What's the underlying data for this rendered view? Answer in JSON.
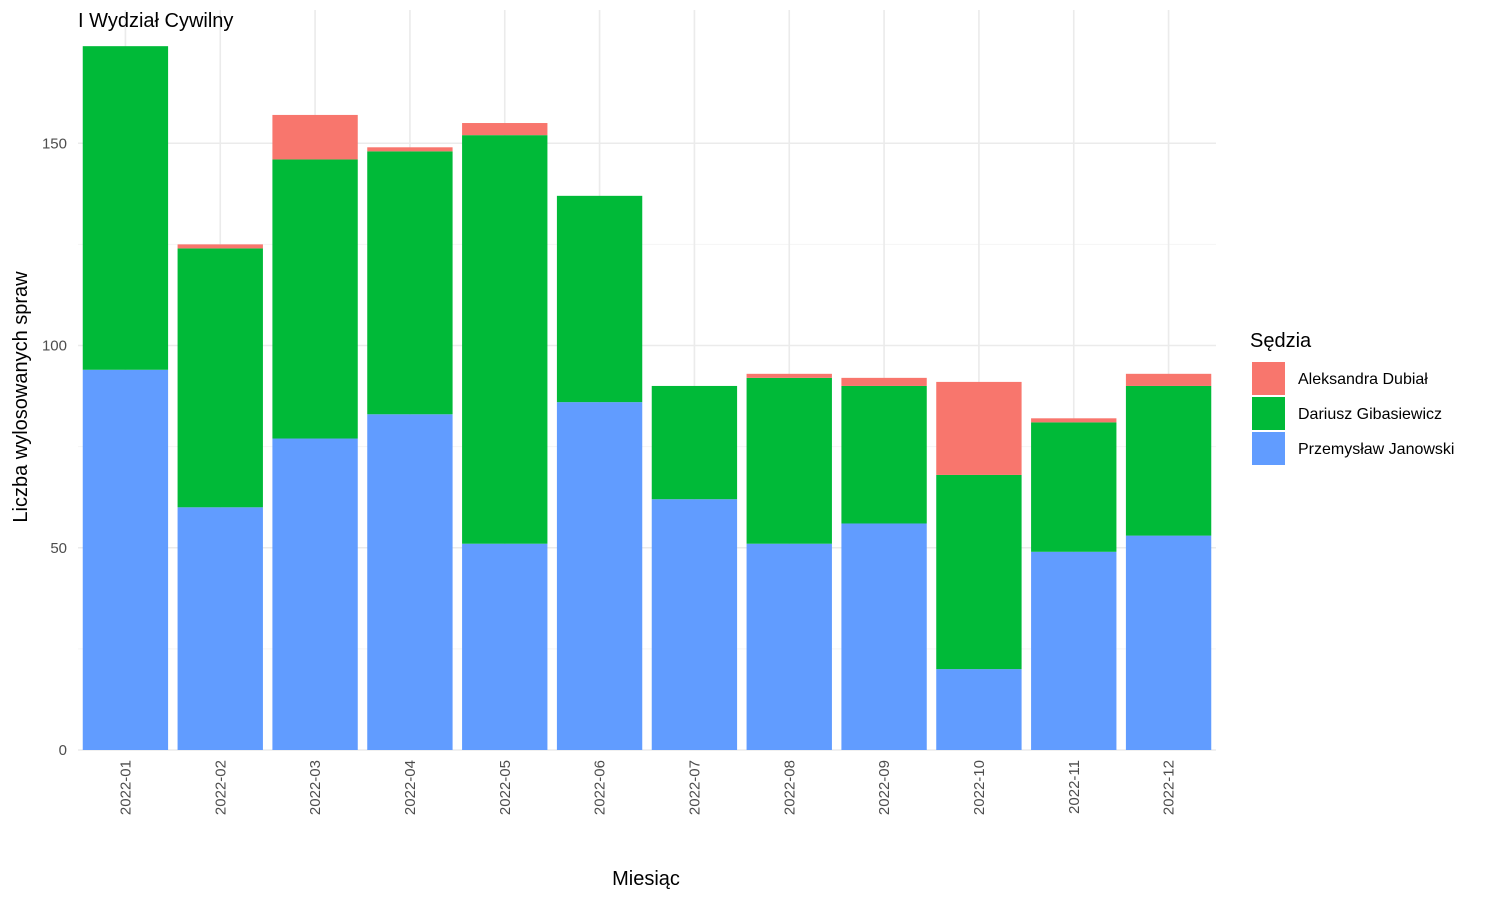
{
  "chart_data": {
    "type": "bar",
    "stacked": true,
    "title": "I Wydział Cywilny",
    "xlabel": "Miesiąc",
    "ylabel": "Liczba wylosowanych spraw",
    "ylim": [
      0,
      175
    ],
    "yticks": [
      0,
      50,
      100,
      150
    ],
    "grid": true,
    "legend": {
      "title": "Sędzia",
      "position": "right"
    },
    "categories": [
      "2022-01",
      "2022-02",
      "2022-03",
      "2022-04",
      "2022-05",
      "2022-06",
      "2022-07",
      "2022-08",
      "2022-09",
      "2022-10",
      "2022-11",
      "2022-12"
    ],
    "series": [
      {
        "name": "Aleksandra Dubiał",
        "color": "#F8766D",
        "values": [
          0,
          1,
          11,
          1,
          3,
          0,
          0,
          1,
          2,
          23,
          1,
          3
        ]
      },
      {
        "name": "Dariusz Gibasiewicz",
        "color": "#00BA38",
        "values": [
          80,
          64,
          69,
          65,
          101,
          51,
          28,
          41,
          34,
          48,
          32,
          37
        ]
      },
      {
        "name": "Przemysław Janowski",
        "color": "#619CFF",
        "values": [
          94,
          60,
          77,
          83,
          51,
          86,
          62,
          51,
          56,
          20,
          49,
          53
        ]
      }
    ]
  }
}
